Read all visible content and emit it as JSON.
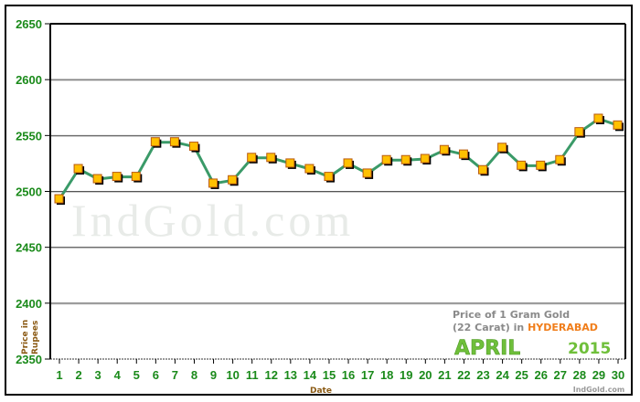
{
  "chart_data": {
    "type": "line",
    "title": "Price of 1 Gram Gold (22 Carat) in HYDERABAD",
    "subtitle": "APRIL 2015",
    "xlabel": "Date",
    "ylabel": "Price in Rupees",
    "ylim": [
      2350,
      2650
    ],
    "yticks": [
      2350,
      2400,
      2450,
      2500,
      2550,
      2600,
      2650
    ],
    "grid": true,
    "legend": null,
    "x": [
      1,
      2,
      3,
      4,
      5,
      6,
      7,
      8,
      9,
      10,
      11,
      12,
      13,
      14,
      15,
      16,
      17,
      18,
      19,
      20,
      21,
      22,
      23,
      24,
      25,
      26,
      27,
      28,
      29,
      30
    ],
    "series": [
      {
        "name": "Price of 1 Gram Gold (22 Carat)",
        "values": [
          2493,
          2520,
          2511,
          2513,
          2513,
          2544,
          2544,
          2540,
          2507,
          2510,
          2530,
          2530,
          2525,
          2520,
          2513,
          2525,
          2516,
          2528,
          2528,
          2529,
          2537,
          2533,
          2519,
          2539,
          2523,
          2523,
          2528,
          2553,
          2565,
          2559
        ],
        "line_color": "#3a9a68",
        "marker_color": "#ffc000"
      }
    ],
    "watermark": "IndGold.com"
  },
  "labels": {
    "ylabel_line1": "Price in",
    "ylabel_line2": "Rupees",
    "xlabel": "Date",
    "caption_line1": "Price of 1 Gram Gold",
    "caption_line2_prefix": "(22 Carat) in ",
    "caption_city": "HYDERABAD",
    "month": "APRIL",
    "year": "2015",
    "site": "IndGold.com",
    "watermark": "IndGold.com"
  },
  "colors": {
    "tick_text": "#1a8a1a",
    "axis_label": "#8b5a14",
    "line": "#3a9a68",
    "marker_fill": "#ffc000",
    "marker_border": "#b85a10",
    "city": "#f07d1a",
    "month": "#6fbf3a"
  }
}
